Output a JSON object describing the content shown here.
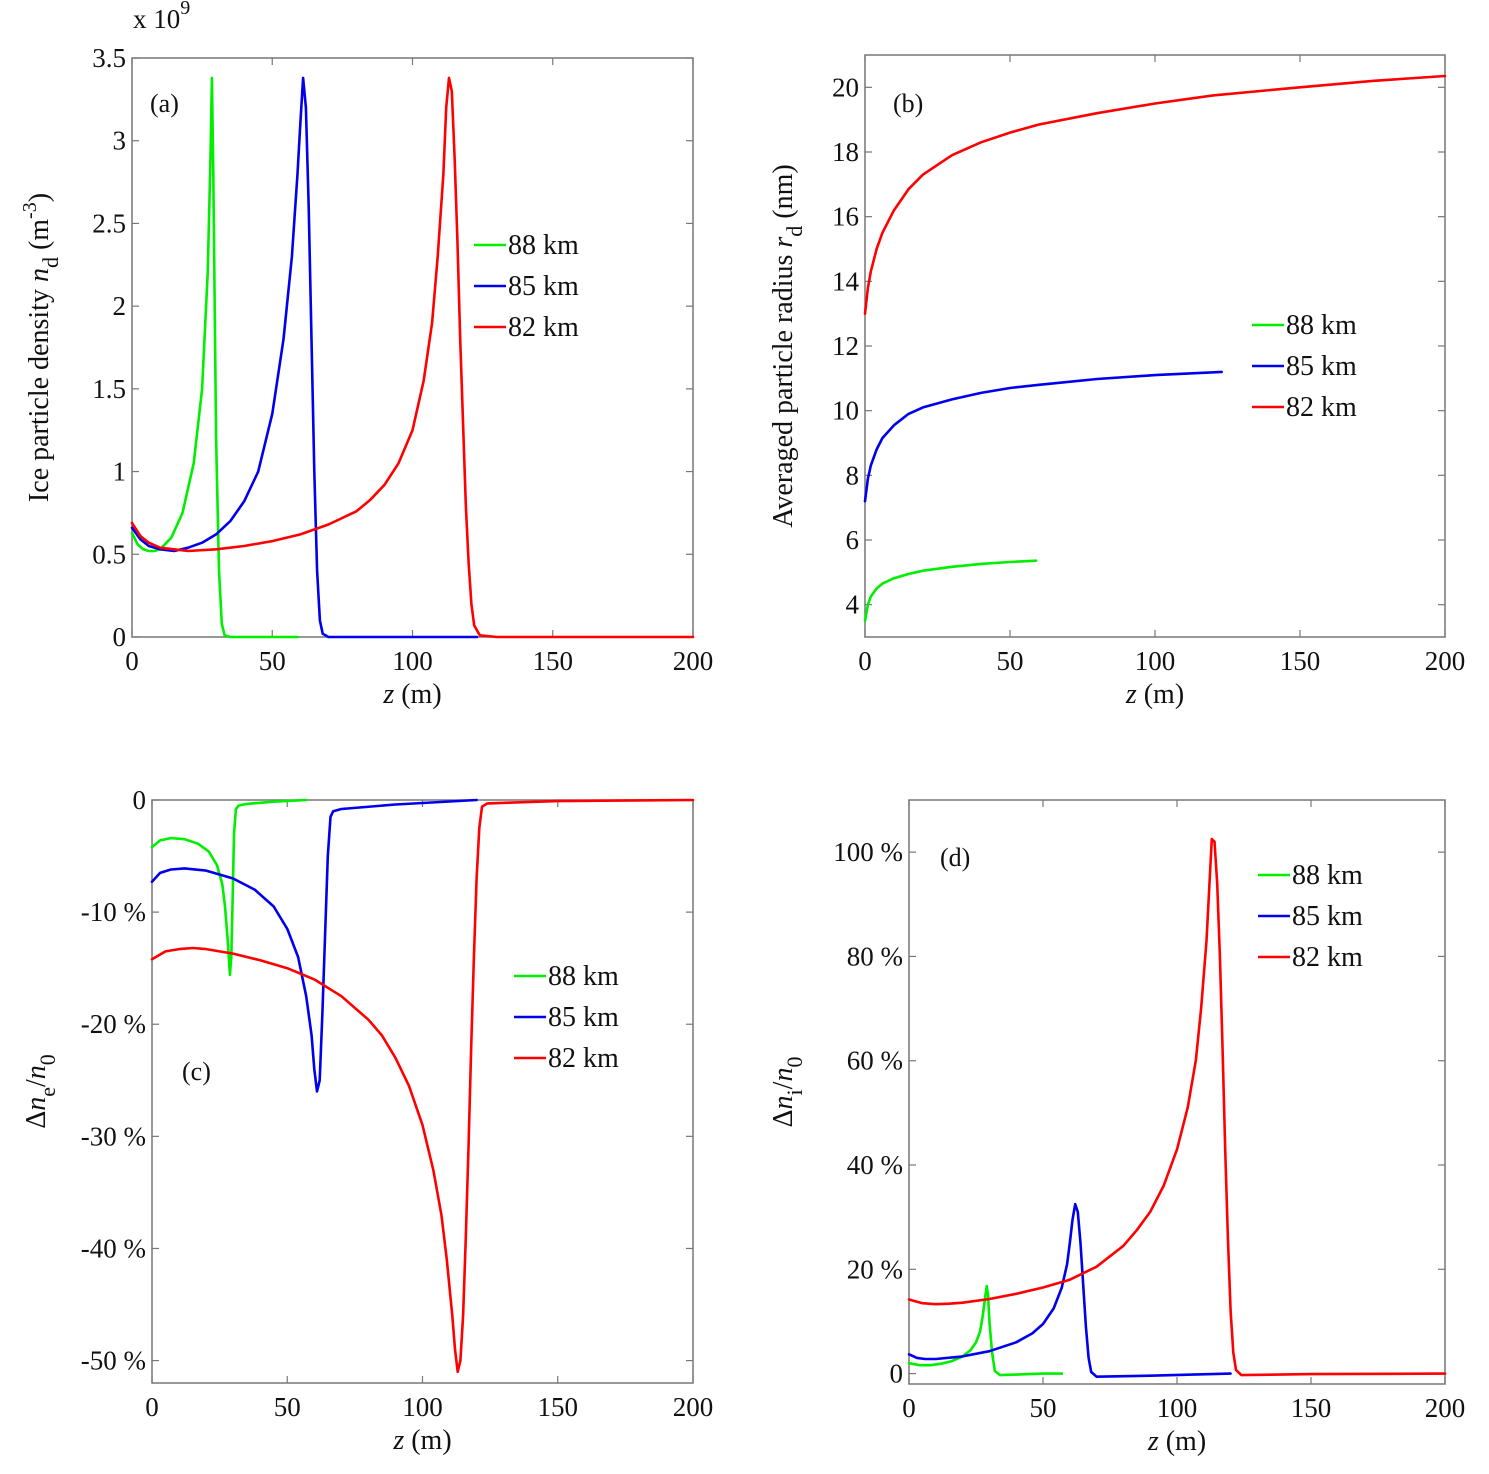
{
  "colors": {
    "88 km": "#00ee00",
    "85 km": "#0000ee",
    "82 km": "#ff0000"
  },
  "chart_data": [
    {
      "id": "a",
      "type": "line",
      "panel_tag": "(a)",
      "xlabel": "z (m)",
      "ylabel": "Ice particle density n_d (m^-3)",
      "ylabel_parts": {
        "main": "Ice particle density ",
        "italic": "n",
        "sub": "d",
        "unit": " (m",
        "sup": "-3",
        "close": ")"
      },
      "xlabel_parts": {
        "italic": "z",
        "rest": " (m)"
      },
      "y_multiplier": "x 10^9",
      "multiplier_parts": {
        "base": "x 10",
        "exp": "9"
      },
      "xlim": [
        0,
        200
      ],
      "ylim": [
        0,
        3.5
      ],
      "xticks": [
        0,
        50,
        100,
        150,
        200
      ],
      "xtick_labels": [
        "0",
        "50",
        "100",
        "150",
        "200"
      ],
      "yticks": [
        0,
        0.5,
        1,
        1.5,
        2,
        2.5,
        3,
        3.5
      ],
      "ytick_labels": [
        "0",
        "0.5",
        "1",
        "1.5",
        "2",
        "2.5",
        "3",
        "3.5"
      ],
      "legend": [
        "88 km",
        "85 km",
        "82 km"
      ],
      "legend_position": "center-right",
      "series": [
        {
          "name": "88 km",
          "x": [
            0,
            2,
            4,
            6,
            8,
            10,
            14,
            18,
            22,
            25,
            27,
            28,
            28.5,
            29,
            29.5,
            30,
            31,
            32,
            33,
            35,
            40,
            50,
            59
          ],
          "y": [
            0.63,
            0.56,
            0.53,
            0.52,
            0.52,
            0.53,
            0.6,
            0.75,
            1.05,
            1.5,
            2.2,
            2.9,
            3.38,
            2.8,
            2.0,
            1.2,
            0.4,
            0.08,
            0.01,
            0.0,
            0.0,
            0.0,
            0.0
          ]
        },
        {
          "name": "85 km",
          "x": [
            0,
            3,
            6,
            10,
            15,
            20,
            25,
            30,
            35,
            40,
            45,
            50,
            54,
            57,
            59,
            60,
            61,
            62,
            63,
            64,
            65,
            66,
            67,
            68,
            70,
            80,
            100,
            123
          ],
          "y": [
            0.66,
            0.59,
            0.55,
            0.53,
            0.52,
            0.54,
            0.57,
            0.62,
            0.7,
            0.82,
            1.0,
            1.35,
            1.8,
            2.3,
            2.8,
            3.1,
            3.38,
            3.2,
            2.6,
            1.8,
            1.0,
            0.4,
            0.1,
            0.02,
            0.0,
            0.0,
            0.0,
            0.0
          ]
        },
        {
          "name": "82 km",
          "x": [
            0,
            3,
            6,
            10,
            15,
            20,
            30,
            40,
            50,
            60,
            70,
            80,
            85,
            90,
            95,
            100,
            104,
            107,
            109,
            111,
            112,
            113,
            114,
            115,
            116,
            117,
            118,
            119,
            120,
            121,
            122,
            124,
            130,
            150,
            200
          ],
          "y": [
            0.69,
            0.61,
            0.57,
            0.54,
            0.53,
            0.52,
            0.53,
            0.55,
            0.58,
            0.62,
            0.68,
            0.76,
            0.83,
            0.92,
            1.05,
            1.25,
            1.55,
            1.9,
            2.3,
            2.8,
            3.2,
            3.38,
            3.3,
            2.9,
            2.4,
            1.8,
            1.3,
            0.8,
            0.45,
            0.2,
            0.07,
            0.01,
            0.0,
            0.0,
            0.0
          ]
        }
      ]
    },
    {
      "id": "b",
      "type": "line",
      "panel_tag": "(b)",
      "xlabel": "z (m)",
      "ylabel": "Averaged particle radius r_d (nm)",
      "ylabel_parts": {
        "main": "Averaged particle radius ",
        "italic": "r",
        "sub": "d",
        "unit": " (nm)"
      },
      "xlabel_parts": {
        "italic": "z",
        "rest": " (m)"
      },
      "xlim": [
        0,
        200
      ],
      "ylim": [
        3,
        21
      ],
      "xticks": [
        0,
        50,
        100,
        150,
        200
      ],
      "xtick_labels": [
        "0",
        "50",
        "100",
        "150",
        "200"
      ],
      "yticks": [
        4,
        6,
        8,
        10,
        12,
        14,
        16,
        18,
        20
      ],
      "ytick_labels": [
        "4",
        "6",
        "8",
        "10",
        "12",
        "14",
        "16",
        "18",
        "20"
      ],
      "legend": [
        "88 km",
        "85 km",
        "82 km"
      ],
      "legend_position": "center-right",
      "series": [
        {
          "name": "88 km",
          "x": [
            0,
            1,
            2,
            4,
            6,
            10,
            15,
            20,
            30,
            40,
            50,
            59
          ],
          "y": [
            3.5,
            4.0,
            4.25,
            4.5,
            4.65,
            4.82,
            4.95,
            5.05,
            5.17,
            5.26,
            5.32,
            5.36
          ]
        },
        {
          "name": "85 km",
          "x": [
            0,
            1,
            2,
            4,
            6,
            10,
            15,
            20,
            30,
            40,
            50,
            60,
            80,
            100,
            123
          ],
          "y": [
            7.2,
            7.9,
            8.3,
            8.8,
            9.15,
            9.55,
            9.9,
            10.1,
            10.35,
            10.55,
            10.7,
            10.8,
            10.98,
            11.1,
            11.2
          ]
        },
        {
          "name": "82 km",
          "x": [
            0,
            1,
            2,
            4,
            6,
            10,
            15,
            20,
            30,
            40,
            50,
            60,
            80,
            100,
            120,
            150,
            175,
            200
          ],
          "y": [
            13.0,
            13.8,
            14.3,
            15.0,
            15.5,
            16.2,
            16.85,
            17.3,
            17.9,
            18.3,
            18.6,
            18.85,
            19.2,
            19.5,
            19.75,
            20.0,
            20.2,
            20.35
          ]
        }
      ]
    },
    {
      "id": "c",
      "type": "line",
      "panel_tag": "(c)",
      "xlabel": "z (m)",
      "ylabel": "Δn_e/n_0",
      "ylabel_parts": {
        "delta": "Δ",
        "italic": "n",
        "sub": "e",
        "slash": "/",
        "italic2": "n",
        "sub2": "0"
      },
      "xlabel_parts": {
        "italic": "z",
        "rest": " (m)"
      },
      "xlim": [
        0,
        200
      ],
      "ylim": [
        -52,
        0
      ],
      "xticks": [
        0,
        50,
        100,
        150,
        200
      ],
      "xtick_labels": [
        "0",
        "50",
        "100",
        "150",
        "200"
      ],
      "yticks": [
        0,
        -10,
        -20,
        -30,
        -40,
        -50
      ],
      "ytick_labels": [
        "0",
        "-10 %",
        "-20 %",
        "-30 %",
        "-40 %",
        "-50 %"
      ],
      "legend": [
        "88 km",
        "85 km",
        "82 km"
      ],
      "legend_position": "center-right",
      "series": [
        {
          "name": "88 km",
          "x": [
            0,
            3,
            7,
            12,
            17,
            21,
            24,
            26,
            27,
            28,
            28.8,
            29.3,
            29.8,
            30.3,
            31,
            32,
            35,
            45,
            57
          ],
          "y": [
            -4.2,
            -3.6,
            -3.4,
            -3.5,
            -3.9,
            -4.6,
            -5.8,
            -7.5,
            -9.5,
            -12.5,
            -15.6,
            -14,
            -9,
            -3,
            -0.8,
            -0.5,
            -0.35,
            -0.15,
            0
          ]
        },
        {
          "name": "85 km",
          "x": [
            0,
            3,
            7,
            12,
            20,
            30,
            38,
            45,
            50,
            54,
            57,
            59,
            60,
            61,
            62,
            63,
            64,
            65,
            66,
            67,
            70,
            90,
            120
          ],
          "y": [
            -7.3,
            -6.5,
            -6.2,
            -6.1,
            -6.3,
            -7.0,
            -8.0,
            -9.5,
            -11.5,
            -14,
            -17.5,
            -21,
            -24,
            -26.0,
            -25,
            -19,
            -12,
            -5,
            -1.5,
            -1.0,
            -0.8,
            -0.4,
            0
          ]
        },
        {
          "name": "82 km",
          "x": [
            0,
            5,
            10,
            15,
            20,
            30,
            40,
            50,
            60,
            70,
            80,
            85,
            90,
            95,
            100,
            104,
            107,
            109,
            111,
            112,
            113,
            114,
            115,
            116,
            117,
            118,
            119,
            120,
            121,
            122,
            124,
            150,
            200
          ],
          "y": [
            -14.2,
            -13.5,
            -13.3,
            -13.2,
            -13.3,
            -13.7,
            -14.3,
            -15.0,
            -16.0,
            -17.5,
            -19.6,
            -21.0,
            -23.0,
            -25.5,
            -29,
            -33,
            -37,
            -41,
            -46,
            -49,
            -51,
            -50,
            -46,
            -39,
            -31,
            -22,
            -14,
            -7,
            -2.5,
            -0.6,
            -0.3,
            -0.1,
            0
          ]
        }
      ]
    },
    {
      "id": "d",
      "type": "line",
      "panel_tag": "(d)",
      "xlabel": "z (m)",
      "ylabel": "Δn_i/n_0",
      "ylabel_parts": {
        "delta": "Δ",
        "italic": "n",
        "sub": "i",
        "slash": "/",
        "italic2": "n",
        "sub2": "0"
      },
      "xlabel_parts": {
        "italic": "z",
        "rest": " (m)"
      },
      "xlim": [
        0,
        200
      ],
      "ylim": [
        -2,
        110
      ],
      "xticks": [
        0,
        50,
        100,
        150,
        200
      ],
      "xtick_labels": [
        "0",
        "50",
        "100",
        "150",
        "200"
      ],
      "yticks": [
        0,
        20,
        40,
        60,
        80,
        100
      ],
      "ytick_labels": [
        "0",
        "20 %",
        "40 %",
        "60 %",
        "80 %",
        "100 %"
      ],
      "legend": [
        "88 km",
        "85 km",
        "82 km"
      ],
      "legend_position": "top-right",
      "series": [
        {
          "name": "88 km",
          "x": [
            0,
            4,
            8,
            12,
            16,
            20,
            23,
            25,
            26.5,
            27.5,
            28.5,
            29,
            29.5,
            30,
            31,
            32,
            34,
            40,
            50,
            57
          ],
          "y": [
            2.0,
            1.6,
            1.6,
            1.9,
            2.4,
            3.3,
            4.5,
            6.0,
            8.0,
            11,
            15,
            16.8,
            15,
            10,
            4,
            0.5,
            -0.3,
            -0.2,
            0,
            0
          ]
        },
        {
          "name": "85 km",
          "x": [
            0,
            3,
            6,
            10,
            20,
            30,
            40,
            46,
            50,
            54,
            57,
            59,
            60,
            61,
            62,
            63,
            64,
            65,
            66,
            67,
            68,
            70,
            90,
            120
          ],
          "y": [
            3.7,
            3.0,
            2.8,
            2.8,
            3.3,
            4.3,
            6.0,
            7.7,
            9.5,
            12.5,
            16.5,
            21,
            25,
            29.5,
            32.5,
            31,
            25,
            17,
            9,
            3,
            0.3,
            -0.6,
            -0.4,
            0
          ]
        },
        {
          "name": "82 km",
          "x": [
            0,
            5,
            10,
            15,
            20,
            30,
            40,
            50,
            60,
            70,
            80,
            85,
            90,
            95,
            100,
            104,
            107,
            109,
            111,
            112,
            113,
            114,
            115,
            116,
            117,
            118,
            119,
            120,
            121,
            122,
            124,
            150,
            200
          ],
          "y": [
            14.2,
            13.5,
            13.3,
            13.4,
            13.6,
            14.3,
            15.3,
            16.5,
            18.0,
            20.5,
            24.5,
            27.5,
            31,
            36,
            43,
            51,
            60,
            70,
            83,
            93,
            102.5,
            102,
            94,
            80,
            62,
            43,
            26,
            12,
            4,
            0.7,
            -0.3,
            -0.1,
            0
          ]
        }
      ]
    }
  ]
}
